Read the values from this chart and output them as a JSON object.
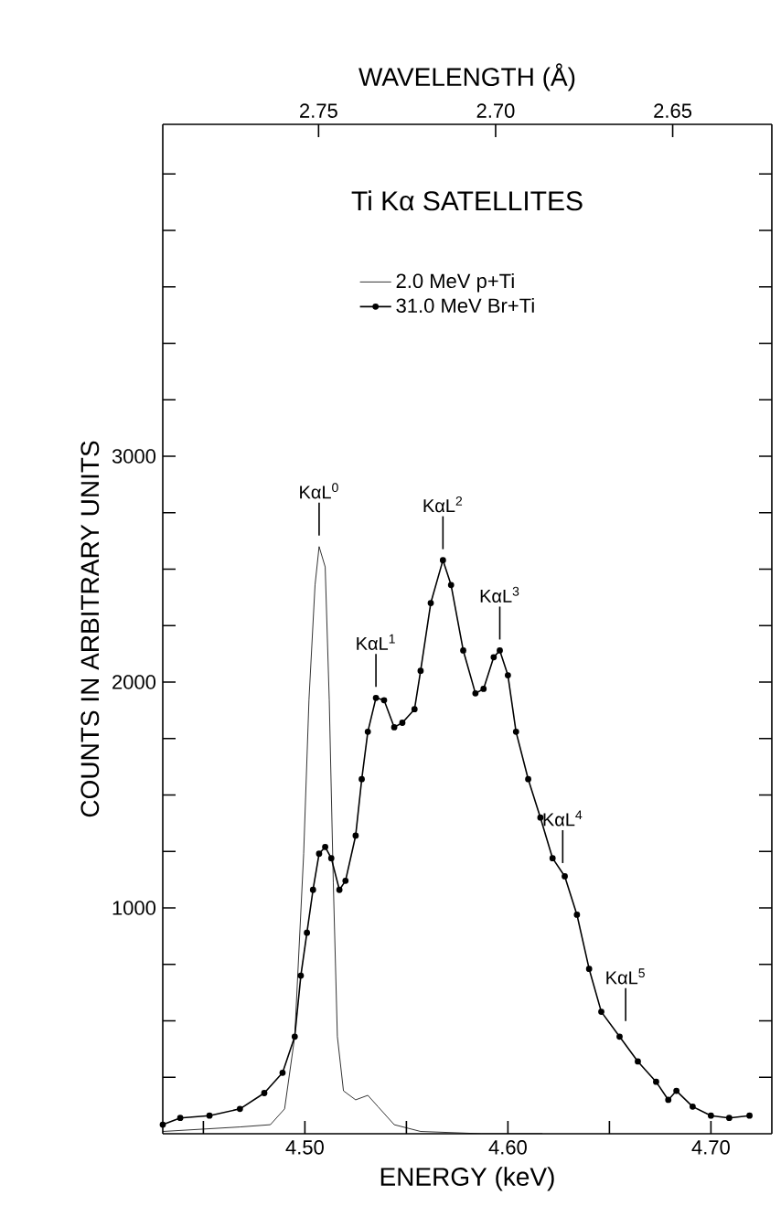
{
  "chart_data": {
    "type": "line",
    "title": "Ti Kα SATELLITES",
    "xlabel": "ENERGY (keV)",
    "ylabel": "COUNTS IN ARBITRARY UNITS",
    "x2label": "WAVELENGTH (Å)",
    "xlim": [
      4.43,
      4.73
    ],
    "ylim": [
      0,
      4470
    ],
    "x2lim": [
      2.794,
      2.622
    ],
    "xticks": [
      {
        "value": 4.45,
        "label": null
      },
      {
        "value": 4.5,
        "label": "4.50"
      },
      {
        "value": 4.55,
        "label": null
      },
      {
        "value": 4.6,
        "label": "4.60"
      },
      {
        "value": 4.65,
        "label": null
      },
      {
        "value": 4.7,
        "label": "4.70"
      }
    ],
    "x2ticks": [
      2.75,
      {
        "value": 2.7,
        "label": "2.70"
      },
      2.65
    ],
    "yticks": [
      {
        "value": 250,
        "label": null
      },
      {
        "value": 500,
        "label": null
      },
      {
        "value": 750,
        "label": null
      },
      1000,
      {
        "value": 1250,
        "label": null
      },
      {
        "value": 1500,
        "label": null
      },
      {
        "value": 1750,
        "label": null
      },
      2000,
      {
        "value": 2250,
        "label": null
      },
      {
        "value": 2500,
        "label": null
      },
      {
        "value": 2750,
        "label": null
      },
      3000,
      {
        "value": 3250,
        "label": null
      },
      {
        "value": 3500,
        "label": null
      },
      {
        "value": 3750,
        "label": null
      },
      {
        "value": 4000,
        "label": null
      },
      {
        "value": 4250,
        "label": null
      }
    ],
    "legend": "top",
    "grid": false,
    "series": [
      {
        "name": "2.0 MeV p+Ti",
        "color": "#000000",
        "marker": "none",
        "x": [
          4.43,
          4.468,
          4.483,
          4.49,
          4.495,
          4.4994,
          4.502,
          4.505,
          4.507,
          4.51,
          4.512,
          4.514,
          4.516,
          4.519,
          4.525,
          4.531,
          4.536,
          4.544,
          4.557,
          4.587,
          4.617
        ],
        "values": [
          10,
          30,
          40,
          110,
          430,
          1240,
          1920,
          2430,
          2600,
          2510,
          1920,
          1110,
          430,
          190,
          150,
          170,
          120,
          40,
          10,
          0,
          0
        ]
      },
      {
        "name": "31.0 MeV Br+Ti",
        "color": "#000000",
        "marker": "circle",
        "x": [
          4.43,
          4.4386,
          4.453,
          4.468,
          4.48,
          4.489,
          4.495,
          4.498,
          4.501,
          4.504,
          4.507,
          4.51,
          4.513,
          4.517,
          4.52,
          4.525,
          4.528,
          4.531,
          4.535,
          4.539,
          4.544,
          4.548,
          4.554,
          4.557,
          4.562,
          4.568,
          4.572,
          4.578,
          4.584,
          4.588,
          4.593,
          4.596,
          4.6,
          4.604,
          4.61,
          4.616,
          4.622,
          4.628,
          4.634,
          4.64,
          4.646,
          4.655,
          4.664,
          4.673,
          4.679,
          4.683,
          4.691,
          4.7,
          4.709,
          4.719
        ],
        "values": [
          40,
          70,
          80,
          110,
          180,
          270,
          430,
          700,
          890,
          1080,
          1240,
          1270,
          1220,
          1080,
          1120,
          1320,
          1570,
          1780,
          1930,
          1920,
          1800,
          1820,
          1880,
          2050,
          2350,
          2540,
          2430,
          2140,
          1950,
          1970,
          2110,
          2140,
          2030,
          1780,
          1570,
          1400,
          1220,
          1140,
          970,
          730,
          540,
          430,
          320,
          230,
          150,
          190,
          120,
          80,
          70,
          80
        ]
      }
    ],
    "annotations": [
      {
        "text": "KαL$^{0}$",
        "x": 4.507,
        "y": 2600
      },
      {
        "text": "KαL$^{1}$",
        "x": 4.535,
        "y": 1930
      },
      {
        "text": "KαL$^{2}$",
        "x": 4.568,
        "y": 2540
      },
      {
        "text": "KαL$^{3}$",
        "x": 4.596,
        "y": 2140
      },
      {
        "text": "KαL$^{4}$",
        "x": 4.627,
        "y": 1150
      },
      {
        "text": "KαL$^{5}$",
        "x": 4.658,
        "y": 450
      }
    ]
  }
}
